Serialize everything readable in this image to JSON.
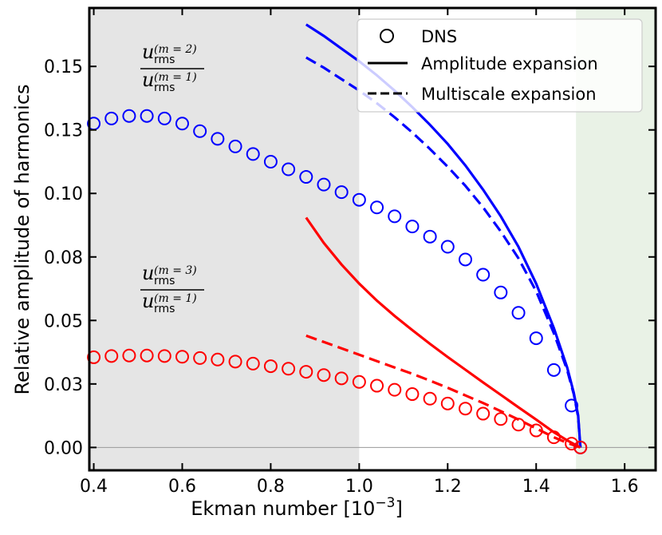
{
  "chart_data": {
    "type": "scatter",
    "xlabel": "Ekman number [10",
    "xlabel_exp": "−3",
    "xlabel_close": "]",
    "ylabel": "Relative amplitude of harmonics",
    "xlim": [
      0.39,
      1.67
    ],
    "ylim": [
      -0.009,
      0.173
    ],
    "x_ticks": [
      0.4,
      0.6,
      0.8,
      1.0,
      1.2,
      1.4,
      1.6
    ],
    "x_tick_labels": [
      "0.4",
      "0.6",
      "0.8",
      "1.0",
      "1.2",
      "1.4",
      "1.6"
    ],
    "y_ticks": [
      0.0,
      0.025,
      0.05,
      0.075,
      0.1,
      0.125,
      0.15
    ],
    "y_tick_labels": [
      "0.00",
      "0.03",
      "0.05",
      "0.08",
      "0.10",
      "0.13",
      "0.15"
    ],
    "shaded_regions": [
      {
        "x_from": 0.39,
        "x_to": 1.0,
        "color": "#e5e5e5"
      },
      {
        "x_from": 1.49,
        "x_to": 1.67,
        "color": "#e9f2e6"
      }
    ],
    "zero_line": 0.0,
    "legend": {
      "position": "top-right",
      "entries": [
        {
          "label": "DNS",
          "style": "circle"
        },
        {
          "label": "Amplitude expansion",
          "style": "solid"
        },
        {
          "label": "Multiscale expansion",
          "style": "dashed"
        }
      ]
    },
    "annotations": [
      {
        "num_base": "u",
        "num_sub": "rms",
        "num_sup": "(m = 2)",
        "den_base": "u",
        "den_sub": "rms",
        "den_sup": "(m = 1)"
      },
      {
        "num_base": "u",
        "num_sub": "rms",
        "num_sup": "(m = 3)",
        "den_base": "u",
        "den_sub": "rms",
        "den_sup": "(m = 1)"
      }
    ],
    "series": [
      {
        "group": "m2",
        "kind": "DNS",
        "color": "#0000ff",
        "x": [
          0.4,
          0.44,
          0.48,
          0.52,
          0.56,
          0.6,
          0.64,
          0.68,
          0.72,
          0.76,
          0.8,
          0.84,
          0.88,
          0.92,
          0.96,
          1.0,
          1.04,
          1.08,
          1.12,
          1.16,
          1.2,
          1.24,
          1.28,
          1.32,
          1.36,
          1.4,
          1.44,
          1.48,
          1.5
        ],
        "y": [
          0.1275,
          0.1295,
          0.1305,
          0.1305,
          0.1295,
          0.1275,
          0.1245,
          0.1215,
          0.1185,
          0.1155,
          0.1125,
          0.1095,
          0.1065,
          0.1035,
          0.1005,
          0.0975,
          0.0945,
          0.091,
          0.087,
          0.083,
          0.079,
          0.074,
          0.068,
          0.061,
          0.053,
          0.043,
          0.0305,
          0.0165,
          0.0
        ]
      },
      {
        "group": "m2",
        "kind": "Amplitude expansion",
        "color": "#0000ff",
        "x": [
          0.88,
          0.92,
          0.96,
          1.0,
          1.04,
          1.08,
          1.12,
          1.16,
          1.2,
          1.24,
          1.28,
          1.32,
          1.36,
          1.4,
          1.44,
          1.47,
          1.485,
          1.495,
          1.5
        ],
        "y": [
          0.1665,
          0.162,
          0.157,
          0.152,
          0.1465,
          0.1405,
          0.134,
          0.127,
          0.1195,
          0.111,
          0.1015,
          0.091,
          0.079,
          0.0645,
          0.047,
          0.0315,
          0.0215,
          0.0125,
          0.0
        ]
      },
      {
        "group": "m2",
        "kind": "Multiscale expansion",
        "color": "#0000ff",
        "x": [
          0.88,
          0.92,
          0.96,
          1.0,
          1.04,
          1.08,
          1.12,
          1.16,
          1.2,
          1.24,
          1.28,
          1.32,
          1.36,
          1.4,
          1.44,
          1.47,
          1.485,
          1.495,
          1.5
        ],
        "y": [
          0.1535,
          0.1495,
          0.145,
          0.1405,
          0.1355,
          0.13,
          0.124,
          0.1175,
          0.1105,
          0.103,
          0.0945,
          0.085,
          0.0745,
          0.0615,
          0.045,
          0.0305,
          0.021,
          0.012,
          0.0
        ]
      },
      {
        "group": "m3",
        "kind": "DNS",
        "color": "#ff0000",
        "x": [
          0.4,
          0.44,
          0.48,
          0.52,
          0.56,
          0.6,
          0.64,
          0.68,
          0.72,
          0.76,
          0.8,
          0.84,
          0.88,
          0.92,
          0.96,
          1.0,
          1.04,
          1.08,
          1.12,
          1.16,
          1.2,
          1.24,
          1.28,
          1.32,
          1.36,
          1.4,
          1.44,
          1.48,
          1.5
        ],
        "y": [
          0.0355,
          0.036,
          0.0362,
          0.0362,
          0.036,
          0.0357,
          0.0352,
          0.0346,
          0.0338,
          0.033,
          0.032,
          0.031,
          0.0298,
          0.0285,
          0.0272,
          0.0258,
          0.0243,
          0.0227,
          0.021,
          0.0192,
          0.0173,
          0.0153,
          0.0133,
          0.0112,
          0.009,
          0.0067,
          0.004,
          0.0015,
          0.0
        ]
      },
      {
        "group": "m3",
        "kind": "Amplitude expansion",
        "color": "#ff0000",
        "x": [
          0.88,
          0.92,
          0.96,
          1.0,
          1.04,
          1.08,
          1.12,
          1.16,
          1.2,
          1.24,
          1.28,
          1.32,
          1.36,
          1.4,
          1.44,
          1.47,
          1.5
        ],
        "y": [
          0.0905,
          0.0805,
          0.072,
          0.0645,
          0.0578,
          0.0518,
          0.0462,
          0.0408,
          0.0356,
          0.0306,
          0.0256,
          0.0207,
          0.0158,
          0.011,
          0.006,
          0.0028,
          0.0
        ]
      },
      {
        "group": "m3",
        "kind": "Multiscale expansion",
        "color": "#ff0000",
        "x": [
          0.88,
          0.92,
          0.96,
          1.0,
          1.04,
          1.08,
          1.12,
          1.16,
          1.2,
          1.24,
          1.28,
          1.32,
          1.36,
          1.4,
          1.44,
          1.47,
          1.5
        ],
        "y": [
          0.044,
          0.0415,
          0.039,
          0.0365,
          0.034,
          0.0315,
          0.029,
          0.0263,
          0.0235,
          0.0205,
          0.0175,
          0.0143,
          0.011,
          0.0075,
          0.004,
          0.0018,
          0.0
        ]
      }
    ]
  }
}
